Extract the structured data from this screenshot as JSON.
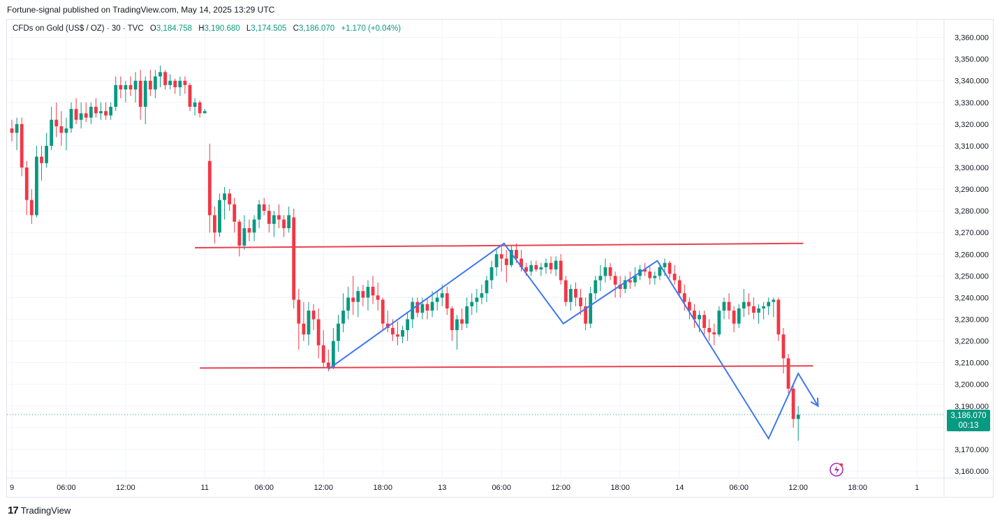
{
  "header": {
    "publish_line": "Fortune-signal published on TradingView.com, May 14, 2025 13:29 UTC"
  },
  "legend": {
    "symbol": "CFDs on Gold (US$ / OZ) · 30 · TVC",
    "open_label": "O",
    "open": "3,184.758",
    "high_label": "H",
    "high": "3,190.680",
    "low_label": "L",
    "low": "3,174.505",
    "close_label": "C",
    "close": "3,186.070",
    "change": "+1.170 (+0.04%)"
  },
  "price_tag": {
    "price": "3,186.070",
    "countdown": "00:13"
  },
  "footer": {
    "brand": "TradingView",
    "logo_glyph": "17"
  },
  "colors": {
    "up": "#089981",
    "down": "#F23645",
    "channel": "#E8404F",
    "path": "#3E77F2",
    "alert": "#A42FB5"
  },
  "chart_data": {
    "type": "candlestick",
    "title": "",
    "ylim": [
      3155,
      3365
    ],
    "y_ticks": [
      "3,160.000",
      "3,170.000",
      "3,180.000",
      "3,190.000",
      "3,200.000",
      "3,210.000",
      "3,220.000",
      "3,230.000",
      "3,240.000",
      "3,250.000",
      "3,260.000",
      "3,270.000",
      "3,280.000",
      "3,290.000",
      "3,300.000",
      "3,310.000",
      "3,320.000",
      "3,330.000",
      "3,340.000",
      "3,350.000",
      "3,360.000"
    ],
    "x_ticks": [
      {
        "label": "9",
        "bar": 0
      },
      {
        "label": "06:00",
        "bar": 11
      },
      {
        "label": "12:00",
        "bar": 23
      },
      {
        "label": "11",
        "bar": 39
      },
      {
        "label": "06:00",
        "bar": 51
      },
      {
        "label": "12:00",
        "bar": 63
      },
      {
        "label": "18:00",
        "bar": 75
      },
      {
        "label": "13",
        "bar": 87
      },
      {
        "label": "06:00",
        "bar": 99
      },
      {
        "label": "12:00",
        "bar": 111
      },
      {
        "label": "18:00",
        "bar": 123
      },
      {
        "label": "14",
        "bar": 135
      },
      {
        "label": "06:00",
        "bar": 147
      },
      {
        "label": "12:00",
        "bar": 159
      },
      {
        "label": "18:00",
        "bar": 171
      },
      {
        "label": "1",
        "bar": 183
      }
    ],
    "candles": [
      [
        3318,
        3322,
        3312,
        3316
      ],
      [
        3316,
        3323,
        3308,
        3320
      ],
      [
        3320,
        3323,
        3296,
        3300
      ],
      [
        3300,
        3303,
        3278,
        3285
      ],
      [
        3285,
        3290,
        3274,
        3278
      ],
      [
        3278,
        3310,
        3277,
        3305
      ],
      [
        3305,
        3310,
        3294,
        3302
      ],
      [
        3302,
        3316,
        3300,
        3310
      ],
      [
        3310,
        3328,
        3308,
        3322
      ],
      [
        3322,
        3330,
        3314,
        3319
      ],
      [
        3319,
        3326,
        3310,
        3316
      ],
      [
        3316,
        3323,
        3308,
        3318
      ],
      [
        3318,
        3330,
        3316,
        3327
      ],
      [
        3327,
        3332,
        3320,
        3322
      ],
      [
        3322,
        3330,
        3318,
        3325
      ],
      [
        3325,
        3330,
        3321,
        3323
      ],
      [
        3323,
        3330,
        3320,
        3328
      ],
      [
        3328,
        3332,
        3323,
        3325
      ],
      [
        3325,
        3330,
        3322,
        3326
      ],
      [
        3326,
        3330,
        3322,
        3324
      ],
      [
        3324,
        3330,
        3322,
        3328
      ],
      [
        3328,
        3342,
        3326,
        3338
      ],
      [
        3338,
        3342,
        3332,
        3336
      ],
      [
        3336,
        3340,
        3330,
        3338
      ],
      [
        3338,
        3342,
        3333,
        3336
      ],
      [
        3336,
        3344,
        3330,
        3340
      ],
      [
        3340,
        3345,
        3322,
        3328
      ],
      [
        3328,
        3342,
        3320,
        3340
      ],
      [
        3340,
        3345,
        3333,
        3336
      ],
      [
        3336,
        3345,
        3332,
        3342
      ],
      [
        3342,
        3347,
        3337,
        3344
      ],
      [
        3344,
        3345,
        3336,
        3338
      ],
      [
        3338,
        3343,
        3336,
        3340
      ],
      [
        3340,
        3341,
        3334,
        3337
      ],
      [
        3337,
        3342,
        3333,
        3340
      ],
      [
        3340,
        3342,
        3334,
        3338
      ],
      [
        3338,
        3339,
        3326,
        3328
      ],
      [
        3328,
        3332,
        3324,
        3330
      ],
      [
        3330,
        3331,
        3323,
        3325
      ],
      [
        3325,
        3327,
        3325,
        3326
      ],
      [
        3303,
        3311,
        3270,
        3278
      ],
      [
        3278,
        3282,
        3265,
        3270
      ],
      [
        3270,
        3288,
        3268,
        3285
      ],
      [
        3285,
        3291,
        3276,
        3288
      ],
      [
        3288,
        3290,
        3280,
        3283
      ],
      [
        3283,
        3286,
        3270,
        3275
      ],
      [
        3275,
        3276,
        3259,
        3264
      ],
      [
        3264,
        3278,
        3262,
        3272
      ],
      [
        3272,
        3276,
        3266,
        3270
      ],
      [
        3270,
        3278,
        3266,
        3276
      ],
      [
        3276,
        3285,
        3272,
        3283
      ],
      [
        3283,
        3286,
        3278,
        3280
      ],
      [
        3280,
        3283,
        3270,
        3274
      ],
      [
        3274,
        3280,
        3268,
        3278
      ],
      [
        3278,
        3283,
        3272,
        3276
      ],
      [
        3276,
        3278,
        3268,
        3272
      ],
      [
        3272,
        3282,
        3270,
        3278
      ],
      [
        3277,
        3281,
        3235,
        3239
      ],
      [
        3239,
        3244,
        3216,
        3228
      ],
      [
        3228,
        3238,
        3220,
        3223
      ],
      [
        3223,
        3238,
        3218,
        3234
      ],
      [
        3234,
        3237,
        3225,
        3230
      ],
      [
        3230,
        3235,
        3212,
        3218
      ],
      [
        3218,
        3225,
        3208,
        3210
      ],
      [
        3210,
        3216,
        3206,
        3208
      ],
      [
        3208,
        3226,
        3207,
        3220
      ],
      [
        3220,
        3232,
        3215,
        3228
      ],
      [
        3228,
        3242,
        3224,
        3234
      ],
      [
        3234,
        3245,
        3230,
        3240
      ],
      [
        3240,
        3250,
        3232,
        3238
      ],
      [
        3238,
        3245,
        3231,
        3243
      ],
      [
        3243,
        3246,
        3236,
        3240
      ],
      [
        3240,
        3248,
        3234,
        3245
      ],
      [
        3245,
        3250,
        3237,
        3241
      ],
      [
        3241,
        3247,
        3234,
        3239
      ],
      [
        3239,
        3240,
        3225,
        3228
      ],
      [
        3228,
        3234,
        3224,
        3226
      ],
      [
        3226,
        3230,
        3220,
        3223
      ],
      [
        3223,
        3229,
        3218,
        3222
      ],
      [
        3222,
        3227,
        3219,
        3225
      ],
      [
        3225,
        3233,
        3220,
        3230
      ],
      [
        3230,
        3240,
        3226,
        3238
      ],
      [
        3238,
        3240,
        3231,
        3233
      ],
      [
        3233,
        3240,
        3230,
        3237
      ],
      [
        3237,
        3240,
        3230,
        3234
      ],
      [
        3234,
        3243,
        3231,
        3238
      ],
      [
        3238,
        3243,
        3234,
        3240
      ],
      [
        3240,
        3246,
        3236,
        3242
      ],
      [
        3242,
        3245,
        3232,
        3235
      ],
      [
        3235,
        3236,
        3220,
        3225
      ],
      [
        3225,
        3232,
        3216,
        3230
      ],
      [
        3230,
        3235,
        3225,
        3228
      ],
      [
        3228,
        3240,
        3226,
        3236
      ],
      [
        3236,
        3242,
        3232,
        3238
      ],
      [
        3238,
        3244,
        3233,
        3240
      ],
      [
        3240,
        3246,
        3237,
        3242
      ],
      [
        3242,
        3250,
        3238,
        3248
      ],
      [
        3248,
        3257,
        3244,
        3254
      ],
      [
        3254,
        3262,
        3250,
        3260
      ],
      [
        3260,
        3264,
        3252,
        3258
      ],
      [
        3258,
        3262,
        3247,
        3255
      ],
      [
        3255,
        3264,
        3254,
        3262
      ],
      [
        3262,
        3265,
        3256,
        3258
      ],
      [
        3258,
        3262,
        3252,
        3254
      ],
      [
        3254,
        3256,
        3250,
        3252
      ],
      [
        3252,
        3257,
        3250,
        3255
      ],
      [
        3255,
        3257,
        3252,
        3253
      ],
      [
        3253,
        3256,
        3250,
        3254
      ],
      [
        3254,
        3258,
        3251,
        3256
      ],
      [
        3256,
        3259,
        3251,
        3253
      ],
      [
        3253,
        3259,
        3250,
        3257
      ],
      [
        3257,
        3260,
        3246,
        3248
      ],
      [
        3248,
        3250,
        3236,
        3238
      ],
      [
        3238,
        3246,
        3234,
        3244
      ],
      [
        3244,
        3247,
        3236,
        3240
      ],
      [
        3240,
        3244,
        3232,
        3236
      ],
      [
        3236,
        3240,
        3225,
        3228
      ],
      [
        3228,
        3245,
        3226,
        3242
      ],
      [
        3242,
        3250,
        3239,
        3248
      ],
      [
        3248,
        3255,
        3243,
        3250
      ],
      [
        3250,
        3258,
        3247,
        3254
      ],
      [
        3254,
        3256,
        3248,
        3250
      ],
      [
        3250,
        3252,
        3240,
        3246
      ],
      [
        3246,
        3250,
        3240,
        3244
      ],
      [
        3244,
        3250,
        3242,
        3248
      ],
      [
        3248,
        3252,
        3244,
        3247
      ],
      [
        3247,
        3254,
        3245,
        3250
      ],
      [
        3250,
        3255,
        3248,
        3253
      ],
      [
        3253,
        3256,
        3250,
        3252
      ],
      [
        3252,
        3255,
        3246,
        3249
      ],
      [
        3249,
        3252,
        3246,
        3250
      ],
      [
        3250,
        3256,
        3248,
        3254
      ],
      [
        3254,
        3258,
        3250,
        3256
      ],
      [
        3256,
        3257,
        3249,
        3251
      ],
      [
        3251,
        3255,
        3246,
        3248
      ],
      [
        3248,
        3250,
        3240,
        3242
      ],
      [
        3242,
        3246,
        3234,
        3238
      ],
      [
        3238,
        3240,
        3230,
        3234
      ],
      [
        3234,
        3237,
        3226,
        3230
      ],
      [
        3230,
        3234,
        3224,
        3232
      ],
      [
        3232,
        3234,
        3222,
        3226
      ],
      [
        3226,
        3230,
        3220,
        3224
      ],
      [
        3224,
        3228,
        3218,
        3223
      ],
      [
        3223,
        3236,
        3222,
        3234
      ],
      [
        3234,
        3240,
        3230,
        3238
      ],
      [
        3238,
        3242,
        3230,
        3234
      ],
      [
        3234,
        3236,
        3224,
        3228
      ],
      [
        3228,
        3237,
        3226,
        3235
      ],
      [
        3235,
        3244,
        3231,
        3238
      ],
      [
        3238,
        3242,
        3232,
        3236
      ],
      [
        3236,
        3240,
        3230,
        3233
      ],
      [
        3233,
        3237,
        3228,
        3235
      ],
      [
        3235,
        3238,
        3230,
        3236
      ],
      [
        3236,
        3240,
        3232,
        3238
      ],
      [
        3238,
        3240,
        3231,
        3239
      ],
      [
        3239,
        3240,
        3220,
        3223
      ],
      [
        3223,
        3226,
        3205,
        3212
      ],
      [
        3212,
        3214,
        3196,
        3198
      ],
      [
        3198,
        3200,
        3180,
        3184
      ],
      [
        3184,
        3190,
        3174,
        3186
      ]
    ],
    "annotations": {
      "resistance_line": [
        {
          "bar": 37,
          "price": 3263
        },
        {
          "bar": 160,
          "price": 3265
        }
      ],
      "support_line": [
        {
          "bar": 38,
          "price": 3207.5
        },
        {
          "bar": 162,
          "price": 3208.5
        }
      ],
      "wave_path": [
        {
          "bar": 64,
          "price": 3207
        },
        {
          "bar": 99.5,
          "price": 3265
        },
        {
          "bar": 111.5,
          "price": 3228
        },
        {
          "bar": 130.5,
          "price": 3257
        },
        {
          "bar": 153,
          "price": 3175
        },
        {
          "bar": 159,
          "price": 3205
        },
        {
          "bar": 163,
          "price": 3190
        }
      ],
      "last_price": 3186.07
    }
  }
}
